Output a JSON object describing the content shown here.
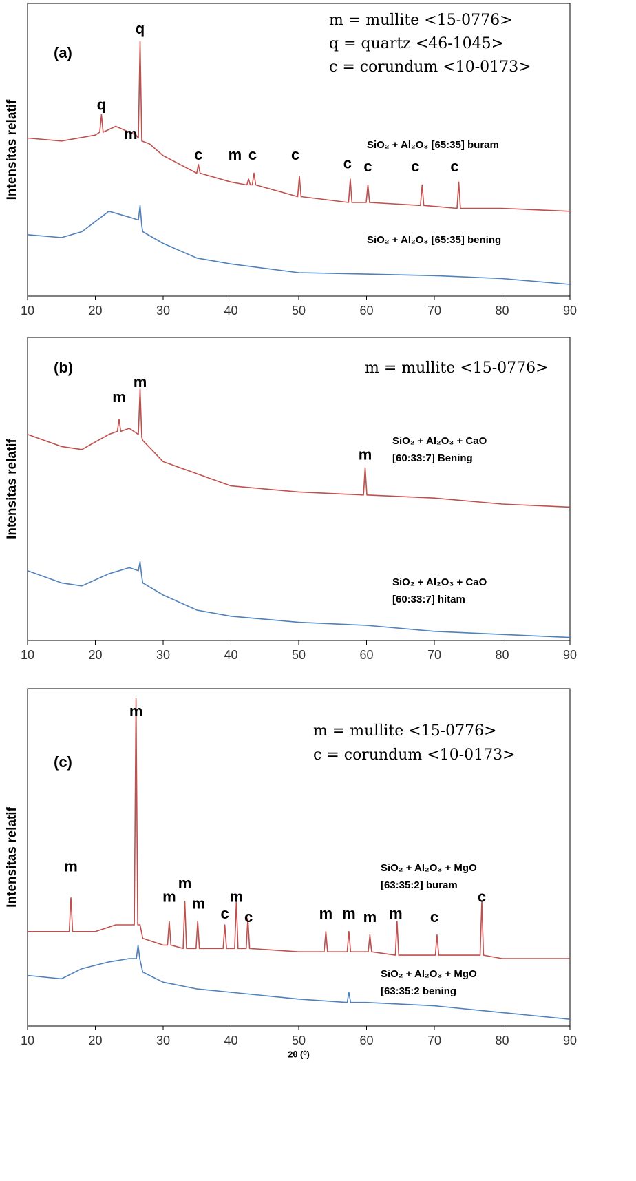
{
  "chart_data": [
    {
      "type": "line",
      "panel_label": "(a)",
      "y_label": "Intensitas relatif",
      "notes": [
        "m = mullite <15-0776>",
        "q = quartz <46-1045>",
        "c = corundum <10-0173>"
      ],
      "xlim": [
        10,
        90
      ],
      "xticks": [
        10,
        20,
        30,
        40,
        50,
        60,
        70,
        80,
        90
      ],
      "ylim": [
        0,
        100
      ],
      "series": [
        {
          "name": "SiO₂ +  Al₂O₃  [65:35] buram",
          "color": "#c0504d",
          "x": [
            10,
            15,
            20,
            20.65,
            20.9,
            21.15,
            23,
            26,
            26.35,
            26.6,
            26.85,
            28,
            30,
            34.95,
            35.2,
            35.45,
            40,
            42.35,
            42.6,
            42.85,
            43.15,
            43.4,
            43.65,
            49.85,
            50.1,
            50.35,
            57.35,
            57.6,
            57.85,
            59.95,
            60.2,
            60.45,
            67.95,
            68.2,
            68.45,
            73.35,
            73.6,
            73.85,
            80,
            90
          ],
          "values": [
            54,
            53,
            55,
            56,
            62,
            56,
            58,
            55,
            54,
            87,
            53,
            52,
            48,
            42,
            45,
            42,
            39,
            38,
            40,
            38,
            38,
            42,
            38,
            34,
            41,
            34,
            32,
            40,
            32,
            32,
            38,
            32,
            31,
            38,
            31,
            30,
            39,
            30,
            30,
            29
          ]
        },
        {
          "name": "SiO₂ +  Al₂O₃ [65:35] bening",
          "color": "#4f81bd",
          "x": [
            10,
            15,
            18,
            22,
            25,
            26.35,
            26.6,
            26.85,
            27,
            30,
            35,
            40,
            50,
            60,
            70,
            80,
            90
          ],
          "values": [
            21,
            20,
            22,
            29,
            27,
            26,
            31,
            24,
            22,
            18,
            13,
            11,
            8,
            7.5,
            7,
            6,
            4
          ]
        }
      ],
      "annotations": [
        {
          "text": "q",
          "x": 26.6,
          "y": 91
        },
        {
          "text": "q",
          "x": 20.9,
          "y": 65
        },
        {
          "text": "m",
          "x": 25.2,
          "y": 55
        },
        {
          "text": "c",
          "x": 35.2,
          "y": 48
        },
        {
          "text": "m",
          "x": 40.6,
          "y": 48
        },
        {
          "text": "c",
          "x": 43.2,
          "y": 48
        },
        {
          "text": "c",
          "x": 49.5,
          "y": 48
        },
        {
          "text": "c",
          "x": 57.2,
          "y": 45
        },
        {
          "text": "c",
          "x": 60.2,
          "y": 44
        },
        {
          "text": "c",
          "x": 67.2,
          "y": 44
        },
        {
          "text": "c",
          "x": 73,
          "y": 44
        }
      ]
    },
    {
      "type": "line",
      "panel_label": "(b)",
      "y_label": "Intensitas relatif",
      "notes": [
        "m = mullite <15-0776>"
      ],
      "xlim": [
        10,
        90
      ],
      "xticks": [
        10,
        20,
        30,
        40,
        50,
        60,
        70,
        80,
        90
      ],
      "ylim": [
        0,
        100
      ],
      "series": [
        {
          "name": "SiO₂ +  Al₂O₃ + CaO [60:33:7] Bening",
          "color": "#c0504d",
          "x": [
            10,
            15,
            18,
            22,
            23.25,
            23.5,
            23.75,
            25,
            26.35,
            26.6,
            26.85,
            27,
            30,
            35,
            40,
            50,
            59.55,
            59.8,
            60.05,
            70,
            80,
            90
          ],
          "values": [
            68,
            64,
            63,
            68,
            69,
            73,
            69,
            70,
            68,
            83,
            67,
            66,
            59,
            55,
            51,
            49,
            48,
            57,
            48,
            47,
            45,
            44
          ]
        },
        {
          "name": "SiO₂ +  Al₂O₃ + CaO [60:33:7] hitam",
          "color": "#4f81bd",
          "x": [
            10,
            15,
            18,
            22,
            25,
            26.35,
            26.6,
            26.85,
            27,
            30,
            35,
            40,
            50,
            60,
            70,
            80,
            90
          ],
          "values": [
            23,
            19,
            18,
            22,
            24,
            23,
            26,
            21,
            19,
            15,
            10,
            8,
            6,
            5,
            3,
            2,
            1
          ]
        }
      ],
      "annotations": [
        {
          "text": "m",
          "x": 26.6,
          "y": 85
        },
        {
          "text": "m",
          "x": 23.5,
          "y": 80
        },
        {
          "text": "m",
          "x": 59.8,
          "y": 61
        }
      ]
    },
    {
      "type": "line",
      "panel_label": "(c)",
      "y_label": "Intensitas relatif",
      "x_label": "2θ (⁰)",
      "notes": [
        "m = mullite <15-0776>",
        "c = corundum <10-0173>"
      ],
      "xlim": [
        10,
        90
      ],
      "xticks": [
        10,
        20,
        30,
        40,
        50,
        60,
        70,
        80,
        90
      ],
      "ylim": [
        0,
        100
      ],
      "series": [
        {
          "name": "SiO₂ +  Al₂O₃ + MgO [63:35:2] buram",
          "color": "#c0504d",
          "x": [
            10,
            15,
            16.15,
            16.4,
            16.65,
            20,
            23,
            25,
            25.75,
            26,
            26.25,
            26.6,
            27,
            30,
            30.65,
            30.9,
            31.15,
            32.95,
            33.2,
            33.45,
            34.85,
            35.1,
            35.35,
            38.85,
            39.1,
            39.35,
            40.55,
            40.8,
            41.05,
            42.25,
            42.5,
            42.75,
            50,
            53.75,
            54,
            54.25,
            57.15,
            57.4,
            57.65,
            60.25,
            60.5,
            60.75,
            64.25,
            64.5,
            64.75,
            70.15,
            70.4,
            70.65,
            76.75,
            77,
            77.25,
            80,
            90
          ],
          "values": [
            28,
            28,
            28,
            38,
            28,
            28,
            30,
            30,
            30,
            97,
            30,
            30,
            26,
            24,
            24,
            31,
            24,
            23,
            37,
            23,
            23,
            31,
            23,
            23,
            30,
            23,
            23,
            37,
            23,
            23,
            32,
            23,
            22,
            22,
            28,
            22,
            22,
            28,
            22,
            22,
            27,
            22,
            21,
            31,
            21,
            21,
            27,
            21,
            21,
            37,
            21,
            20,
            20
          ]
        },
        {
          "name": "SiO₂ +  Al₂O₃ + MgO [63:35:2 bening",
          "color": "#4f81bd",
          "x": [
            10,
            15,
            18,
            22,
            25,
            26.05,
            26.3,
            26.55,
            27,
            30,
            35,
            40,
            50,
            57.15,
            57.4,
            57.65,
            60,
            70,
            80,
            90
          ],
          "values": [
            15,
            14,
            17,
            19,
            20,
            20,
            24,
            20,
            16,
            13,
            11,
            10,
            8,
            7,
            10,
            7,
            7,
            6,
            4,
            2
          ]
        }
      ],
      "annotations": [
        {
          "text": "m",
          "x": 16.4,
          "y": 47
        },
        {
          "text": "m",
          "x": 26,
          "y": 93
        },
        {
          "text": "m",
          "x": 30.9,
          "y": 38
        },
        {
          "text": "m",
          "x": 33.2,
          "y": 42
        },
        {
          "text": "m",
          "x": 35.2,
          "y": 36
        },
        {
          "text": "c",
          "x": 39.1,
          "y": 33
        },
        {
          "text": "m",
          "x": 40.8,
          "y": 38
        },
        {
          "text": "c",
          "x": 42.6,
          "y": 32
        },
        {
          "text": "m",
          "x": 54,
          "y": 33
        },
        {
          "text": "m",
          "x": 57.4,
          "y": 33
        },
        {
          "text": "m",
          "x": 60.5,
          "y": 32
        },
        {
          "text": "m",
          "x": 64.3,
          "y": 33
        },
        {
          "text": "c",
          "x": 70,
          "y": 32
        },
        {
          "text": "c",
          "x": 77,
          "y": 38
        }
      ]
    }
  ]
}
